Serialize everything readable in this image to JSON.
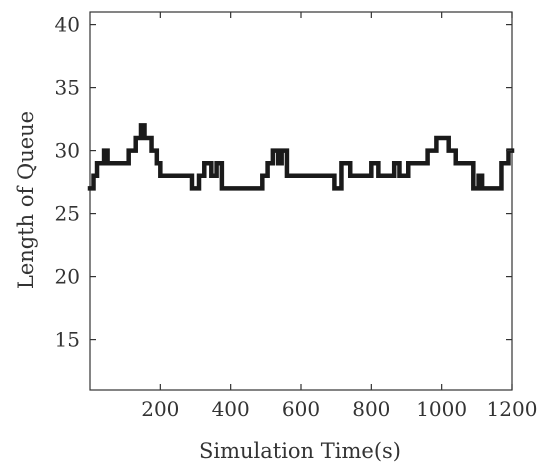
{
  "chart_data": {
    "type": "line",
    "title": "",
    "xlabel": "Simulation Time(s)",
    "ylabel": "Length of Queue",
    "xlim": [
      0,
      1200
    ],
    "ylim": [
      11,
      41
    ],
    "xticks": [
      200,
      400,
      600,
      800,
      1000,
      1200
    ],
    "yticks": [
      15,
      20,
      25,
      30,
      35,
      40
    ],
    "grid": false,
    "legend": "none",
    "colors": {
      "line": "#1a1a1a",
      "axis": "#333333",
      "background": "#ffffff"
    },
    "series": [
      {
        "step": "post",
        "x": [
          0,
          10,
          20,
          40,
          50,
          110,
          130,
          145,
          155,
          175,
          190,
          200,
          290,
          310,
          325,
          345,
          360,
          375,
          490,
          505,
          520,
          535,
          545,
          560,
          695,
          715,
          740,
          800,
          820,
          840,
          865,
          880,
          905,
          960,
          985,
          1020,
          1040,
          1090,
          1105,
          1115,
          1170,
          1190,
          1200
        ],
        "y": [
          27,
          28,
          29,
          30,
          29,
          30,
          31,
          32,
          31,
          30,
          29,
          28,
          27,
          28,
          29,
          28,
          29,
          27,
          28,
          29,
          30,
          29,
          30,
          28,
          27,
          29,
          28,
          29,
          28,
          28,
          29,
          28,
          29,
          30,
          31,
          30,
          29,
          27,
          28,
          27,
          29,
          30,
          30
        ]
      }
    ]
  }
}
